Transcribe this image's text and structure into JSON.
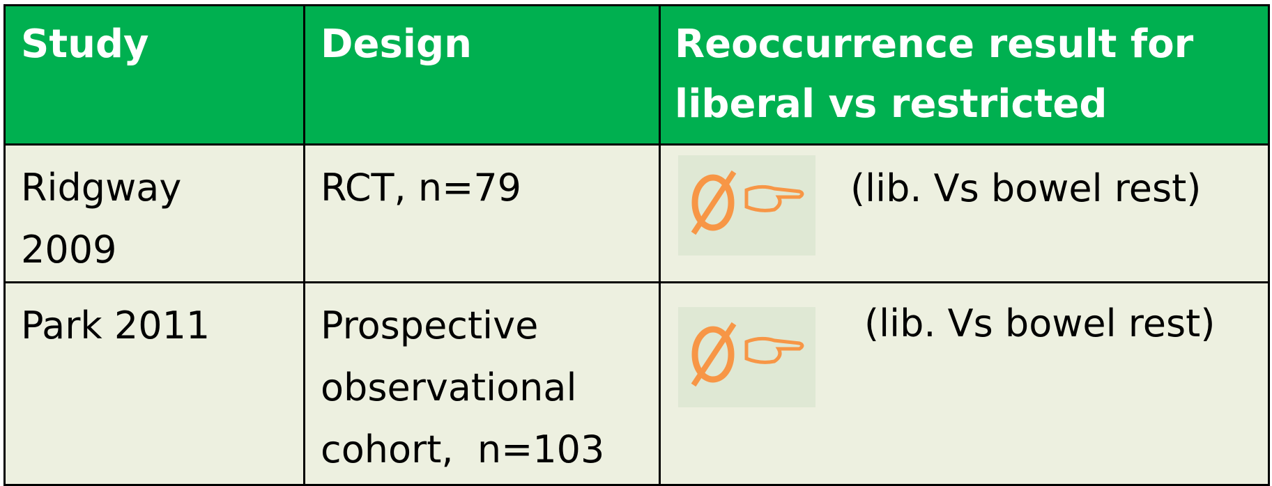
{
  "table": {
    "header": [
      "Study",
      "Design",
      "Reoccurrence result for\nliberal vs restricted"
    ],
    "rows": [
      [
        "Ridgway\n2009",
        "RCT, n=79",
        "(lib. Vs bowel rest)"
      ],
      [
        "Park 2011",
        "Prospective\nobservational\ncohort,  n=103",
        "(lib. Vs bowel rest)"
      ]
    ]
  }
}
